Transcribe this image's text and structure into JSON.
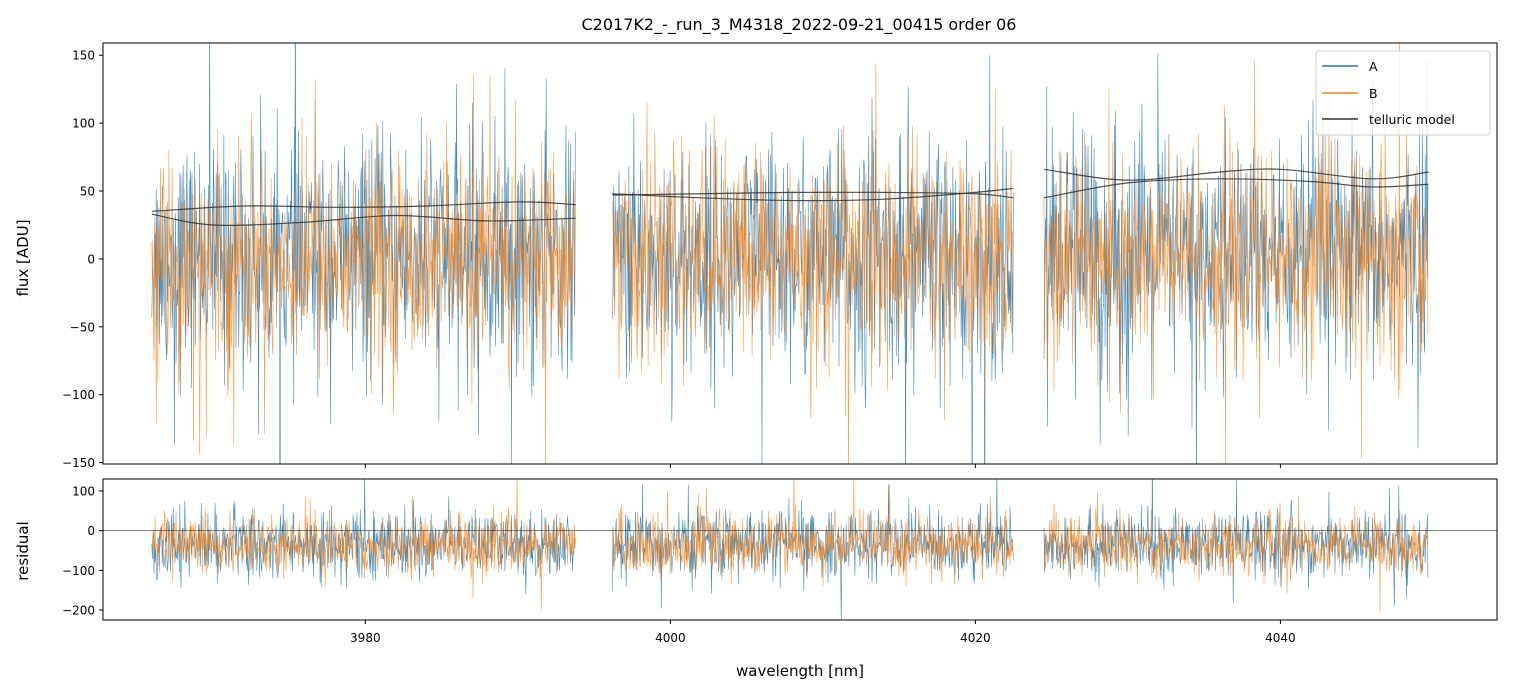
{
  "chart_data": [
    {
      "type": "line",
      "panel": "flux",
      "title": "C2017K2_-_run_3_M4318_2022-09-21_00415  order 06",
      "xlabel": "",
      "ylabel": "flux [ADU]",
      "xlim": [
        3962.8,
        4054.2
      ],
      "ylim": [
        -151,
        159
      ],
      "yticks": [
        -150,
        -100,
        -50,
        0,
        50,
        100,
        150
      ],
      "yticklabels": [
        "−150",
        "−100",
        "−50",
        "0",
        "50",
        "100",
        "150"
      ],
      "xticks": [
        3980,
        4000,
        4020,
        4040
      ],
      "segments": [
        [
          3966.0,
          3993.8
        ],
        [
          3996.2,
          4022.5
        ],
        [
          4024.5,
          4049.7
        ]
      ],
      "noise": {
        "center": 0,
        "spread_A": 42,
        "spread_B": 38
      },
      "series": [
        {
          "name": "A",
          "color": "#1f77b4"
        },
        {
          "name": "B",
          "color": "#ff7f0e"
        },
        {
          "name": "telluric model",
          "color": "#333333",
          "curves": [
            {
              "x": [
                3966,
                3972,
                3978,
                3984,
                3990,
                3993.8
              ],
              "y": [
                35,
                39,
                38,
                39,
                42,
                40
              ]
            },
            {
              "x": [
                3966,
                3970,
                3976,
                3982,
                3988,
                3993.8
              ],
              "y": [
                33,
                25,
                27,
                32,
                28,
                30
              ]
            },
            {
              "x": [
                3996.2,
                4002,
                4008,
                4014,
                4020,
                4022.5
              ],
              "y": [
                47,
                48,
                49,
                49,
                48,
                45
              ]
            },
            {
              "x": [
                3996.2,
                4002,
                4008,
                4014,
                4020,
                4022.5
              ],
              "y": [
                48,
                45,
                43,
                44,
                49,
                52
              ]
            },
            {
              "x": [
                4024.5,
                4030,
                4036,
                4040,
                4046,
                4049.7
              ],
              "y": [
                66,
                58,
                64,
                66,
                59,
                64
              ]
            },
            {
              "x": [
                4024.5,
                4030,
                4036,
                4042,
                4046,
                4049.7
              ],
              "y": [
                45,
                56,
                59,
                57,
                53,
                55
              ]
            }
          ]
        }
      ],
      "legend_position": "upper right"
    },
    {
      "type": "line",
      "panel": "residual",
      "xlabel": "wavelength [nm]",
      "ylabel": "residual",
      "xlim": [
        3962.8,
        4054.2
      ],
      "ylim": [
        -225,
        130
      ],
      "yticks": [
        -200,
        -100,
        0,
        100
      ],
      "yticklabels": [
        "−200",
        "−100",
        "0",
        "100"
      ],
      "xticks": [
        3980,
        4000,
        4020,
        4040
      ],
      "xticklabels": [
        "3980",
        "4000",
        "4020",
        "4040"
      ],
      "zero_line": 0,
      "noise": {
        "center": -35,
        "spread_A": 40,
        "spread_B": 36
      }
    }
  ]
}
